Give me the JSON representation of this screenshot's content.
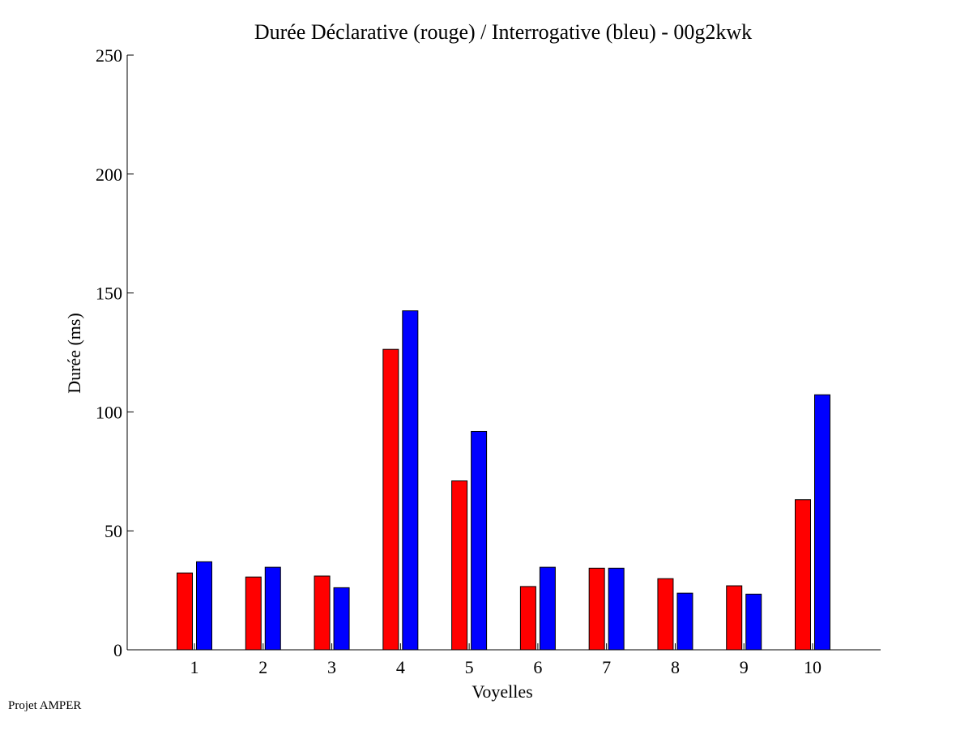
{
  "chart_data": {
    "type": "bar",
    "title": "Durée Déclarative (rouge) / Interrogative (bleu) - 00g2kwk",
    "xlabel": "Voyelles",
    "ylabel": "Durée (ms)",
    "ylim": [
      0,
      250
    ],
    "yticks": [
      0,
      50,
      100,
      150,
      200,
      250
    ],
    "categories": [
      "1",
      "2",
      "3",
      "4",
      "5",
      "6",
      "7",
      "8",
      "9",
      "10"
    ],
    "series": [
      {
        "color": "#ff0000",
        "values": [
          32.3,
          30.6,
          31.0,
          126.3,
          71.0,
          26.6,
          34.3,
          29.9,
          26.9,
          63.1
        ]
      },
      {
        "color": "#0000ff",
        "values": [
          37.0,
          34.7,
          26.1,
          142.5,
          91.8,
          34.7,
          34.3,
          23.8,
          23.4,
          107.2
        ]
      }
    ],
    "grid": false,
    "legend": "none"
  },
  "footer": {
    "text": "Projet AMPER"
  }
}
